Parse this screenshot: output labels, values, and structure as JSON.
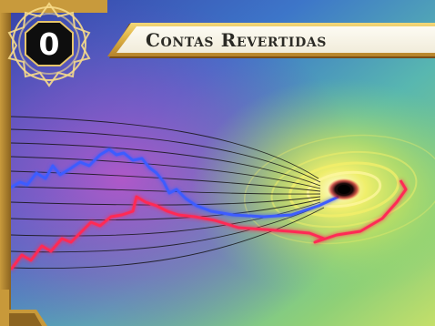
{
  "card": {
    "cost": "0",
    "title": "Contas Revertidas"
  },
  "icons": {
    "cost": "octagon-cost-badge",
    "frame_ornament": "gold-filigree"
  },
  "colors": {
    "frame_gold": "#e1b648",
    "frame_dark": "#7a4e16",
    "title_plate": "#f7f3e6",
    "title_text": "#2b2a25",
    "cost_badge": "#111111",
    "trend_red": "#ff2a55",
    "trend_blue": "#3c5cff",
    "vortex_yellow": "#f7ee4a"
  }
}
